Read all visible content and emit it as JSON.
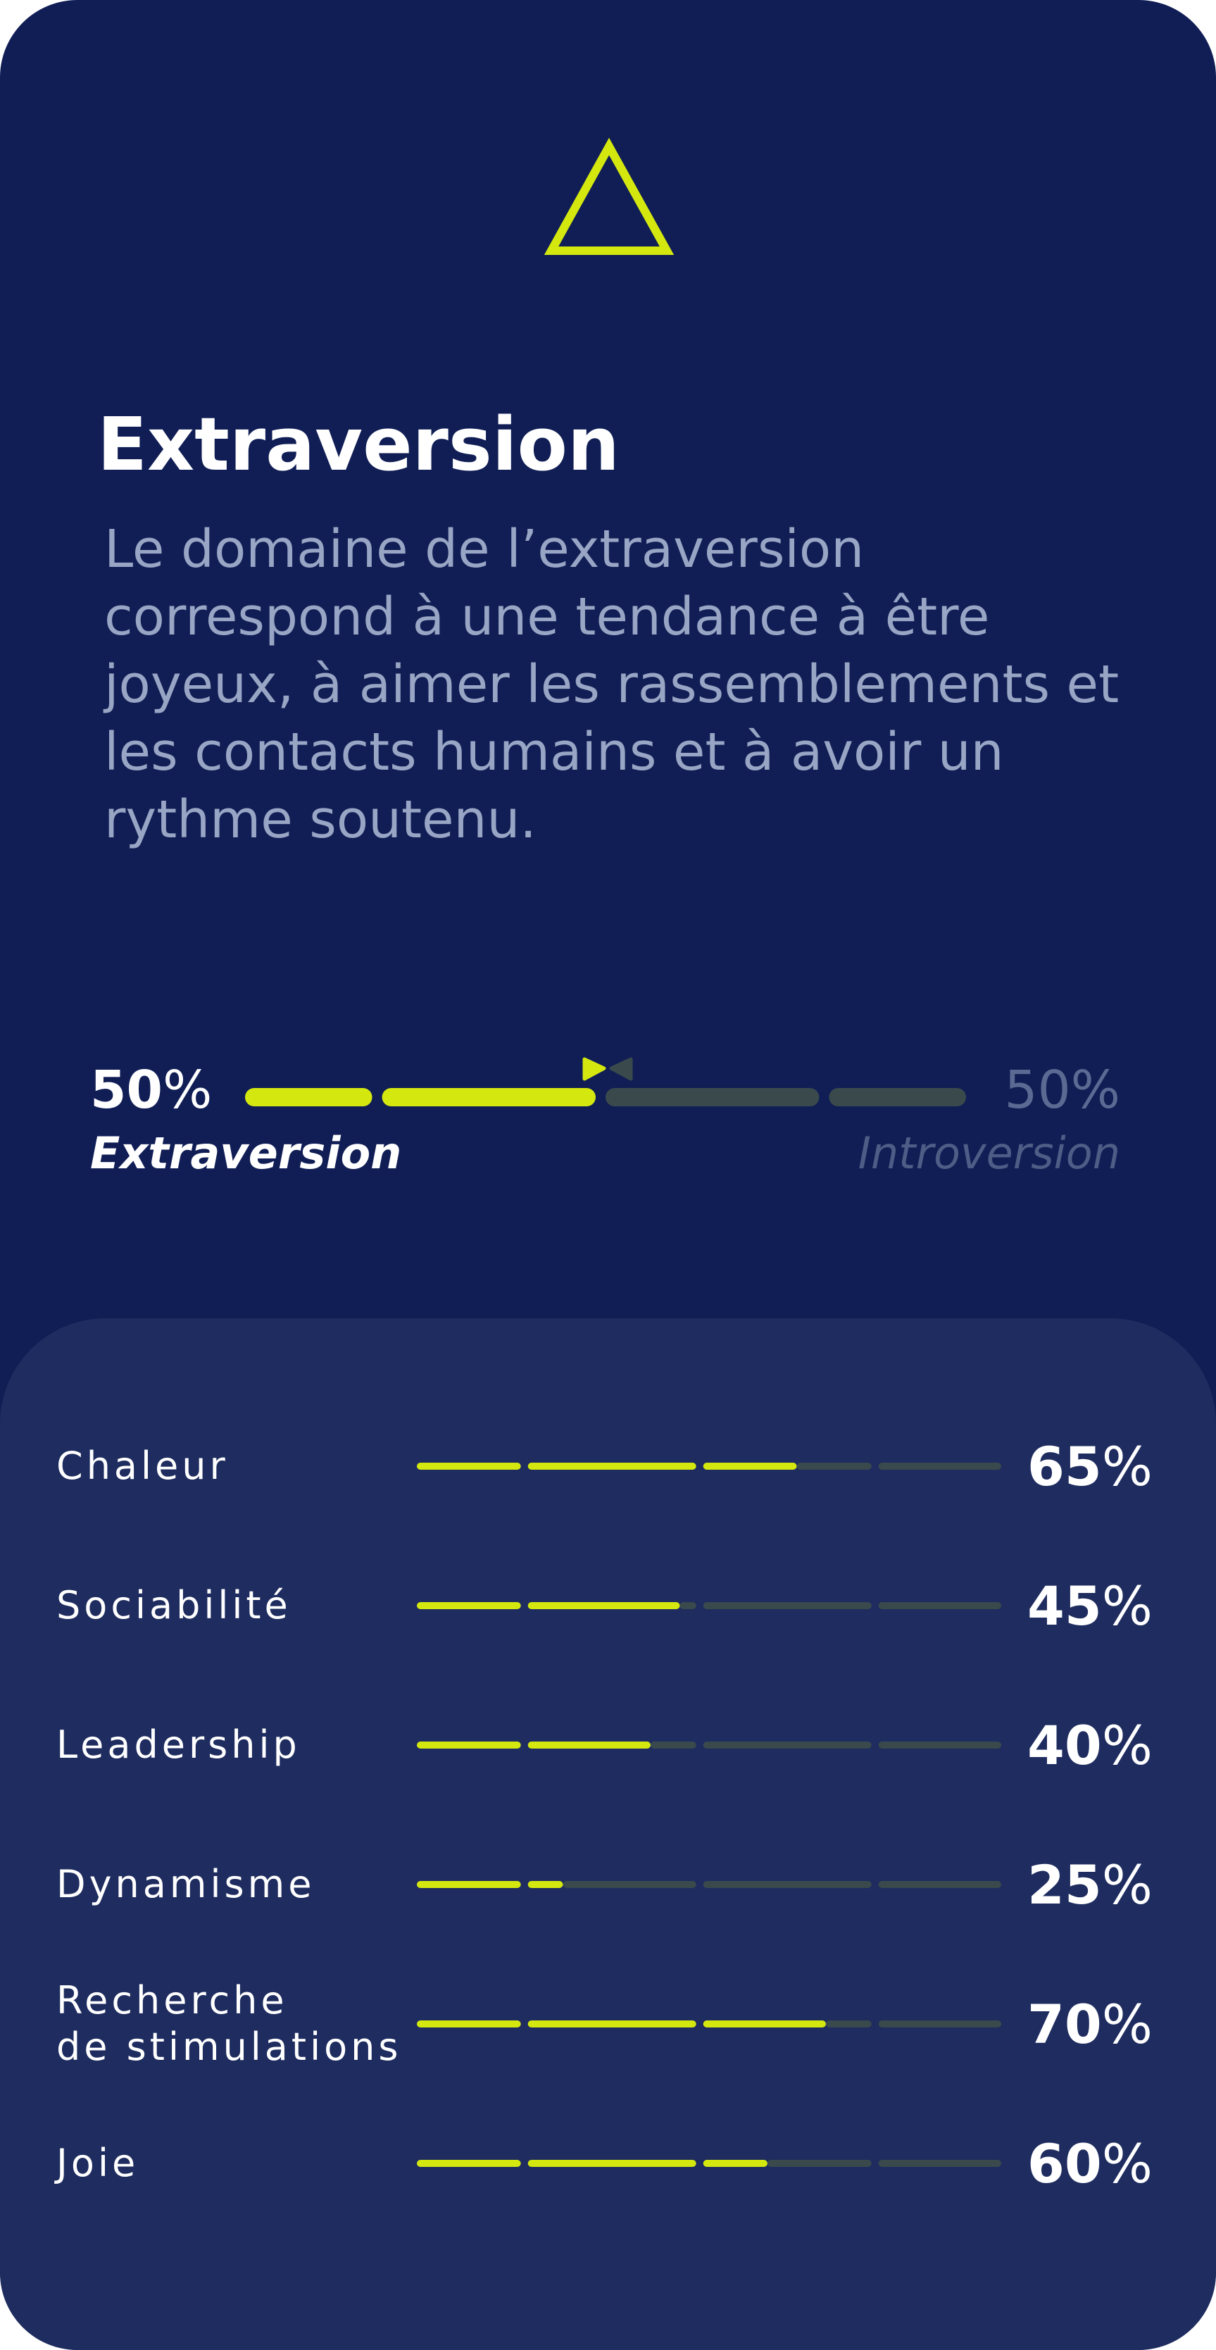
{
  "colors": {
    "background": "#101e55",
    "panel": "#1e2c5f",
    "accent": "#d4e80f",
    "track": "#3a4a4c",
    "description": "#98a5c4",
    "muted": "#4d5d86"
  },
  "logo_icon": "triangle-outline-icon",
  "title": "Extraversion",
  "description": "Le domaine de l’extraversion correspond à une tendance à être joyeux, à aimer les rassemblements et les contacts humains et à avoir un rythme soutenu.",
  "balance": {
    "left": {
      "value": "50",
      "unit": "%",
      "label": "Extraversion"
    },
    "right": {
      "value": "50",
      "unit": "%",
      "label": "Introversion"
    },
    "position_percent": 50,
    "marker_icons": [
      "triangle-right-icon",
      "triangle-left-icon"
    ]
  },
  "facets": [
    {
      "label": "Chaleur",
      "value": "65",
      "unit": "%",
      "percent": 65
    },
    {
      "label": "Sociabilité",
      "value": "45",
      "unit": "%",
      "percent": 45
    },
    {
      "label": "Leadership",
      "value": "40",
      "unit": "%",
      "percent": 40
    },
    {
      "label": "Dynamisme",
      "value": "25",
      "unit": "%",
      "percent": 25
    },
    {
      "label": "Recherche\nde stimulations",
      "value": "70",
      "unit": "%",
      "percent": 70
    },
    {
      "label": "Joie",
      "value": "60",
      "unit": "%",
      "percent": 60
    }
  ]
}
